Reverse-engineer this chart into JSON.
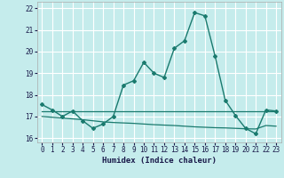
{
  "xlabel": "Humidex (Indice chaleur)",
  "bg_color": "#c5ecec",
  "grid_color": "#ffffff",
  "line_color": "#1a7a6e",
  "ylim": [
    15.8,
    22.3
  ],
  "xlim": [
    -0.5,
    23.5
  ],
  "yticks": [
    16,
    17,
    18,
    19,
    20,
    21,
    22
  ],
  "xticks": [
    0,
    1,
    2,
    3,
    4,
    5,
    6,
    7,
    8,
    9,
    10,
    11,
    12,
    13,
    14,
    15,
    16,
    17,
    18,
    19,
    20,
    21,
    22,
    23
  ],
  "curve1_x": [
    0,
    1,
    2,
    3,
    4,
    5,
    6,
    7,
    8,
    9,
    10,
    11,
    12,
    13,
    14,
    15,
    16,
    17,
    18,
    19,
    20,
    21,
    22,
    23
  ],
  "curve1_y": [
    17.55,
    17.3,
    17.0,
    17.25,
    16.8,
    16.45,
    16.65,
    17.0,
    18.45,
    18.65,
    19.5,
    19.0,
    18.8,
    20.15,
    20.5,
    21.8,
    21.65,
    19.8,
    17.75,
    17.05,
    16.45,
    16.2,
    17.3,
    17.25
  ],
  "curve2_x": [
    0,
    23
  ],
  "curve2_y": [
    17.25,
    17.25
  ],
  "curve3_x": [
    0,
    4,
    6,
    7,
    8,
    9,
    10,
    11,
    12,
    13,
    14,
    15,
    16,
    17,
    18,
    19,
    20,
    21,
    22,
    23
  ],
  "curve3_y": [
    17.0,
    16.85,
    16.75,
    16.72,
    16.7,
    16.68,
    16.65,
    16.62,
    16.6,
    16.58,
    16.55,
    16.52,
    16.5,
    16.48,
    16.47,
    16.45,
    16.43,
    16.42,
    16.58,
    16.55
  ]
}
